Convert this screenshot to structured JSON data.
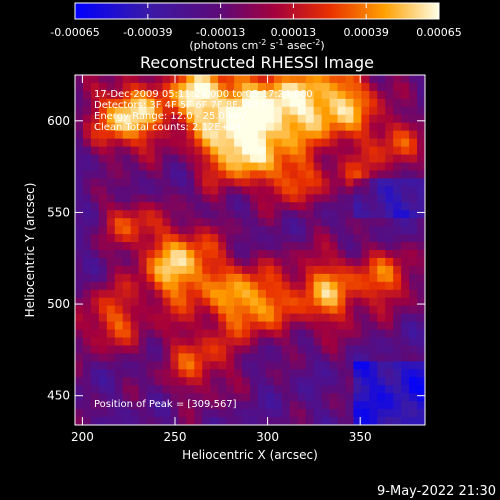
{
  "chart_data": {
    "type": "heatmap",
    "title": "Reconstructed RHESSI Image",
    "xlabel": "Heliocentric X (arcsec)",
    "ylabel": "Heliocentric Y (arcsec)",
    "xlim": [
      196,
      385
    ],
    "ylim": [
      434,
      625
    ],
    "x_ticks": [
      200,
      250,
      300,
      350
    ],
    "y_ticks": [
      450,
      500,
      550,
      600
    ],
    "x_tick_labels": [
      "200",
      "250",
      "300",
      "350"
    ],
    "y_tick_labels": [
      "450",
      "500",
      "550",
      "600"
    ],
    "colorbar": {
      "range": [
        -0.00065,
        0.00065
      ],
      "ticks": [
        -0.00065,
        -0.00039,
        -0.00013,
        0.00013,
        0.00039,
        0.00065
      ],
      "tick_labels": [
        "-0.00065",
        "-0.00039",
        "-0.00013",
        "0.00013",
        "0.00039",
        "0.00065"
      ],
      "unit_label_parts": [
        "(photons cm",
        "-2",
        " s",
        "-1",
        " asec",
        "-2",
        ")"
      ]
    },
    "annotations": [
      "17-Dec-2009 05:11:24.000 to 05:17:24.000",
      "Detectors: 3F 4F 5F 6F 7F 8F, Att 0",
      "Energy Range: 12.0 - 25.0 keV",
      "Clean    Total counts: 2.12E+04"
    ],
    "peak_label": "Position of Peak = [309,567]",
    "peak_position": [
      309,
      567
    ],
    "grid": false,
    "legend": "none"
  },
  "footer": {
    "date": "9-May-2022 21:30"
  }
}
